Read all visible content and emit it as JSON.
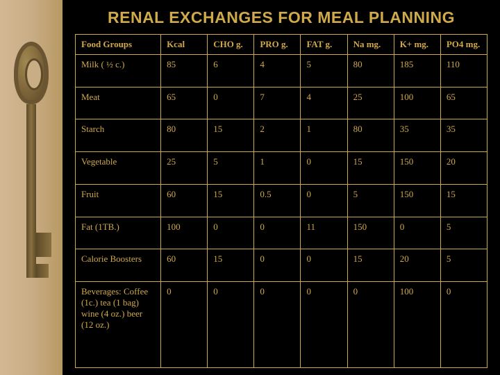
{
  "title": "RENAL EXCHANGES FOR MEAL PLANNING",
  "table": {
    "columns": [
      "Food Groups",
      "Kcal",
      "CHO g.",
      "PRO g.",
      "FAT g.",
      "Na mg.",
      "K+ mg.",
      "PO4 mg."
    ],
    "rows": [
      [
        "Milk ( ½ c.)",
        "85",
        "6",
        "4",
        "5",
        "80",
        "185",
        "110"
      ],
      [
        "Meat",
        "65",
        "0",
        "7",
        "4",
        "25",
        "100",
        "65"
      ],
      [
        "Starch",
        "80",
        "15",
        "2",
        "1",
        "80",
        "35",
        "35"
      ],
      [
        "Vegetable",
        "25",
        "5",
        "1",
        "0",
        "15",
        "150",
        "20"
      ],
      [
        "Fruit",
        "60",
        "15",
        "0.5",
        "0",
        "5",
        "150",
        "15"
      ],
      [
        "Fat (1TB.)",
        "100",
        "0",
        "0",
        "11",
        "150",
        "0",
        "5"
      ],
      [
        "Calorie Boosters",
        "60",
        "15",
        "0",
        "0",
        "15",
        "20",
        "5"
      ],
      [
        "Beverages: Coffee (1c.) tea  (1 bag) wine (4 oz.) beer  (12 oz.)",
        "0",
        "0",
        "0",
        "0",
        "0",
        "100",
        "0"
      ]
    ]
  },
  "style": {
    "title_color": "#cfa94a",
    "border_color": "#cfa94a",
    "text_color": "#cfa94a",
    "background": "#000000",
    "strip_color": "#c9ad85",
    "title_fontsize": 23,
    "cell_fontsize": 13
  }
}
